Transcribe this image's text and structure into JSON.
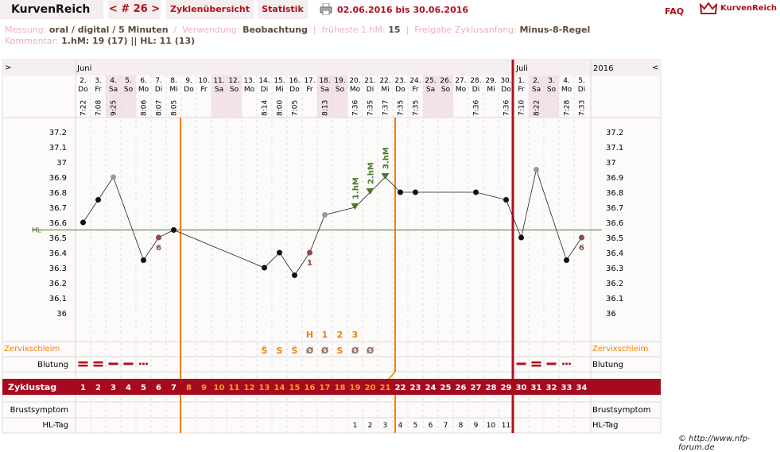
{
  "header": {
    "logo": "KurvenReich",
    "nav": "< # 26 >",
    "tab_cycle": "Zyklenübersicht",
    "tab_stats": "Statistik",
    "date_range": "02.06.2016 bis 30.06.2016",
    "faq": "FAQ",
    "brand": "KurvenReich"
  },
  "info": {
    "measure_label": "Messung:",
    "measure_value": "oral / digital / 5 Minuten",
    "use_label": "Verwendung:",
    "use_value": "Beobachtung",
    "first_hm_label": "früheste 1.hM:",
    "first_hm_value": "15",
    "release_label": "Freigabe Zyklusanfang:",
    "release_value": "Minus-8-Regel",
    "comment_label": "Kommentar:",
    "comment_value": "1.hM: 19 (17) || HL: 11 (13)"
  },
  "copyright": "© http://www.nfp-forum.de",
  "chart_data": {
    "type": "line",
    "month_labels": [
      "Juni",
      "Juli"
    ],
    "year": "2016",
    "nav_left": ">",
    "nav_right": "<",
    "dates": [
      "2.",
      "3.",
      "4.",
      "5.",
      "6.",
      "7.",
      "8.",
      "9.",
      "10.",
      "11.",
      "12.",
      "13.",
      "14.",
      "15.",
      "16.",
      "17.",
      "18.",
      "19.",
      "20.",
      "21.",
      "22.",
      "23.",
      "24.",
      "25.",
      "26.",
      "27.",
      "28.",
      "29.",
      "30.",
      "1.",
      "2.",
      "3.",
      "4.",
      "5."
    ],
    "weekdays": [
      "Do",
      "Fr",
      "Sa",
      "So",
      "Mo",
      "Di",
      "Mi",
      "Do",
      "Fr",
      "Sa",
      "So",
      "Mo",
      "Di",
      "Mi",
      "Do",
      "Fr",
      "Sa",
      "So",
      "Mo",
      "Di",
      "Mi",
      "Do",
      "Fr",
      "Sa",
      "So",
      "Mo",
      "Di",
      "Mi",
      "Do",
      "Fr",
      "Sa",
      "So",
      "Mo",
      "Di"
    ],
    "times": [
      "7:22",
      "7:08",
      "9:25",
      "",
      "8:06",
      "8:07",
      "8:05",
      "",
      "",
      "",
      "",
      "",
      "8:14",
      "8:00",
      "7:05",
      "",
      "8:13",
      "",
      "7:36",
      "7:35",
      "7:37",
      "7:35",
      "7:35",
      "",
      "",
      "",
      "7:36",
      "",
      "7:36",
      "7:10",
      "8:22",
      "",
      "7:28",
      "7:33"
    ],
    "cycle_days": [
      1,
      2,
      3,
      4,
      5,
      6,
      7,
      8,
      9,
      10,
      11,
      12,
      13,
      14,
      15,
      16,
      17,
      18,
      19,
      20,
      21,
      22,
      23,
      24,
      25,
      26,
      27,
      28,
      29,
      30,
      31,
      32,
      33,
      34
    ],
    "temperatures": [
      36.6,
      36.75,
      36.9,
      null,
      36.35,
      36.5,
      36.55,
      null,
      null,
      null,
      null,
      null,
      36.3,
      36.4,
      36.25,
      36.4,
      36.65,
      null,
      36.7,
      36.8,
      36.9,
      36.8,
      36.8,
      null,
      null,
      null,
      36.8,
      null,
      36.75,
      36.5,
      36.95,
      null,
      36.35,
      36.5
    ],
    "y_ticks": [
      "37.2",
      "37.1",
      "37",
      "36.9",
      "36.8",
      "36.7",
      "36.6",
      "36.5",
      "36.4",
      "36.3",
      "36.2",
      "36.1",
      "36"
    ],
    "ylim": [
      36.0,
      37.2
    ],
    "coverline_label": "HL",
    "coverline_value": 36.55,
    "hm_labels": [
      "1.hM",
      "2.hM",
      "3.hM"
    ],
    "annotations": [
      "6",
      "1",
      "6"
    ],
    "cervix_label": "Zervixschleim",
    "cervix_peak_letters": [
      "H",
      "1",
      "2",
      "3"
    ],
    "cervix_symbols": [
      "",
      "",
      "",
      "",
      "",
      "",
      "",
      "",
      "",
      "",
      "",
      "",
      "Ŝ",
      "S",
      "Ŝ",
      "Ø",
      "Ø",
      "S",
      "Ø",
      "Ø",
      "",
      "",
      "",
      "",
      "",
      "",
      "",
      "",
      "",
      "",
      "",
      "",
      "",
      ""
    ],
    "bleeding_label": "Blutung",
    "cycle_label": "Zyklustag",
    "breast_label": "Brustsymptom",
    "hl_day_label": "HL-Tag",
    "hl_days": [
      "",
      "",
      "",
      "",
      "",
      "",
      "",
      "",
      "",
      "",
      "",
      "",
      "",
      "",
      "",
      "",
      "",
      "",
      "1",
      "2",
      "3",
      "4",
      "5",
      "6",
      "7",
      "8",
      "9",
      "10",
      "11",
      "",
      "",
      "",
      "",
      ""
    ],
    "colors": {
      "accent": "#b0101e",
      "orange": "#f08000",
      "green": "#4a7a2a",
      "weekend": "#f3e2e6",
      "bar": "#a50a1f"
    }
  }
}
